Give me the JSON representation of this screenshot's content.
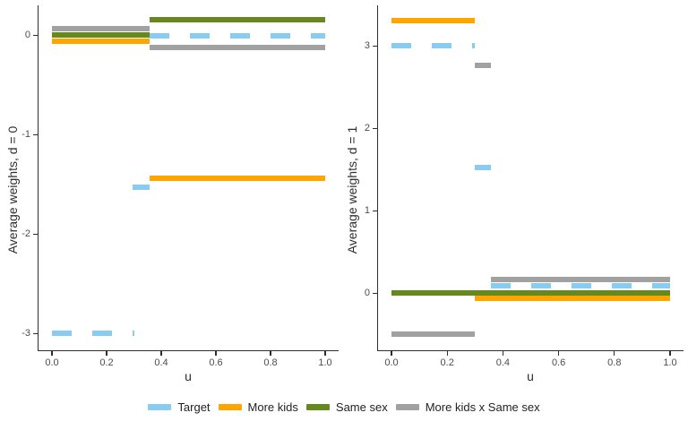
{
  "figure": {
    "background": "#ffffff",
    "colors": {
      "target": "#89CCF1",
      "more_kids": "#FFA500",
      "same_sex": "#66881E",
      "interaction": "#A1A1A1"
    },
    "axis": {
      "line_color": "#2e2e2e",
      "tick_label_color": "#4d4d4d",
      "title_color": "#2e2e2e"
    },
    "legend": {
      "position": "bottom",
      "items": [
        {
          "key": "target",
          "label": "Target",
          "line_style": "dashed"
        },
        {
          "key": "more_kids",
          "label": "More kids",
          "line_style": "solid"
        },
        {
          "key": "same_sex",
          "label": "Same sex",
          "line_style": "solid"
        },
        {
          "key": "interaction",
          "label": "More kids x Same sex",
          "line_style": "solid"
        }
      ]
    }
  },
  "chart_data": [
    {
      "type": "line",
      "panel": "d0",
      "xlabel": "u",
      "ylabel": "Average weights, d = 0",
      "xlim": [
        0,
        1
      ],
      "ylim": [
        -3.2,
        0.3
      ],
      "grid": false,
      "x_ticks": [
        {
          "v": 0.0,
          "label": "0.0"
        },
        {
          "v": 0.2,
          "label": "0.2"
        },
        {
          "v": 0.4,
          "label": "0.4"
        },
        {
          "v": 0.6,
          "label": "0.6"
        },
        {
          "v": 0.8,
          "label": "0.8"
        },
        {
          "v": 1.0,
          "label": "1.0"
        }
      ],
      "y_ticks": [
        {
          "v": 0,
          "label": "0"
        },
        {
          "v": -1,
          "label": "-1"
        },
        {
          "v": -2,
          "label": "-2"
        },
        {
          "v": -3,
          "label": "-3"
        }
      ],
      "series": [
        {
          "name": "More kids",
          "key": "more_kids",
          "style": "solid",
          "segments": [
            {
              "u": [
                0,
                0.357
              ],
              "w": -0.06
            },
            {
              "u": [
                0.357,
                1.0
              ],
              "w": -1.44
            }
          ]
        },
        {
          "name": "Same sex",
          "key": "same_sex",
          "style": "solid",
          "segments": [
            {
              "u": [
                0,
                0.357
              ],
              "w": 0.0
            },
            {
              "u": [
                0.357,
                1.0
              ],
              "w": 0.15
            }
          ]
        },
        {
          "name": "More kids x Same sex",
          "key": "interaction",
          "style": "solid",
          "segments": [
            {
              "u": [
                0,
                0.357
              ],
              "w": 0.06
            },
            {
              "u": [
                0.357,
                1.0
              ],
              "w": -0.13
            }
          ]
        },
        {
          "name": "Target",
          "key": "target",
          "style": "dashed",
          "segments": [
            {
              "u": [
                0,
                0.3
              ],
              "w": -3.0
            },
            {
              "u": [
                0.295,
                0.357
              ],
              "w": -1.53,
              "style": "solid"
            },
            {
              "u": [
                0.357,
                1.0
              ],
              "w": -0.01
            }
          ]
        }
      ]
    },
    {
      "type": "line",
      "panel": "d1",
      "xlabel": "u",
      "ylabel": "Average weights, d = 1",
      "xlim": [
        0,
        1
      ],
      "ylim": [
        -0.7,
        3.45
      ],
      "grid": false,
      "x_ticks": [
        {
          "v": 0.0,
          "label": "0.0"
        },
        {
          "v": 0.2,
          "label": "0.2"
        },
        {
          "v": 0.4,
          "label": "0.4"
        },
        {
          "v": 0.6,
          "label": "0.6"
        },
        {
          "v": 0.8,
          "label": "0.8"
        },
        {
          "v": 1.0,
          "label": "1.0"
        }
      ],
      "y_ticks": [
        {
          "v": 3,
          "label": "3"
        },
        {
          "v": 2,
          "label": "2"
        },
        {
          "v": 1,
          "label": "1"
        },
        {
          "v": 0,
          "label": "0"
        }
      ],
      "series": [
        {
          "name": "More kids",
          "key": "more_kids",
          "style": "solid",
          "segments": [
            {
              "u": [
                0,
                0.3
              ],
              "w": 3.3
            },
            {
              "u": [
                0.3,
                1.0
              ],
              "w": -0.07
            }
          ]
        },
        {
          "name": "Same sex",
          "key": "same_sex",
          "style": "solid",
          "segments": [
            {
              "u": [
                0,
                1.0
              ],
              "w": 0.0
            }
          ]
        },
        {
          "name": "More kids x Same sex",
          "key": "interaction",
          "style": "solid",
          "segments": [
            {
              "u": [
                0,
                0.3
              ],
              "w": -0.5
            },
            {
              "u": [
                0.3,
                0.357
              ],
              "w": 2.76
            },
            {
              "u": [
                0.357,
                1.0
              ],
              "w": 0.16
            }
          ]
        },
        {
          "name": "Target",
          "key": "target",
          "style": "dashed",
          "segments": [
            {
              "u": [
                0,
                0.3
              ],
              "w": 3.0
            },
            {
              "u": [
                0.3,
                0.357
              ],
              "w": 1.52,
              "style": "solid"
            },
            {
              "u": [
                0.357,
                1.0
              ],
              "w": 0.09
            }
          ]
        }
      ]
    }
  ]
}
